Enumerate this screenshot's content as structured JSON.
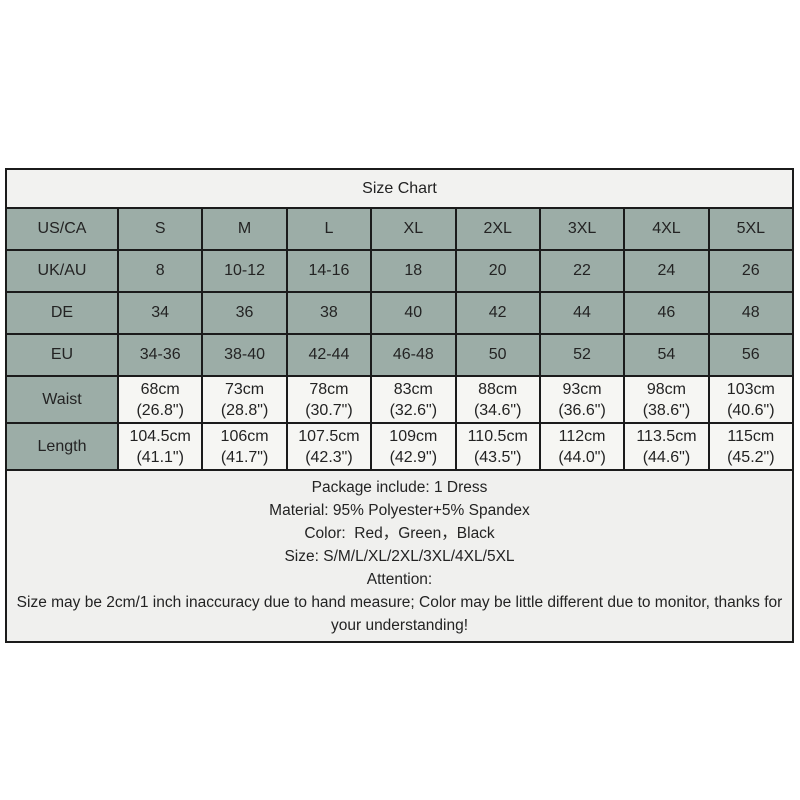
{
  "title": "Size Chart",
  "colors": {
    "cell_green": "#9cada7",
    "cell_light": "#f6f6f3",
    "panel_bg": "#f0f0ee",
    "border": "#1b1b1b",
    "text": "#232323"
  },
  "table": {
    "rows": [
      {
        "label": "US/CA",
        "values": [
          "S",
          "M",
          "L",
          "XL",
          "2XL",
          "3XL",
          "4XL",
          "5XL"
        ]
      },
      {
        "label": "UK/AU",
        "values": [
          "8",
          "10-12",
          "14-16",
          "18",
          "20",
          "22",
          "24",
          "26"
        ]
      },
      {
        "label": "DE",
        "values": [
          "34",
          "36",
          "38",
          "40",
          "42",
          "44",
          "46",
          "48"
        ]
      },
      {
        "label": "EU",
        "values": [
          "34-36",
          "38-40",
          "42-44",
          "46-48",
          "50",
          "52",
          "54",
          "56"
        ]
      },
      {
        "label": "Waist",
        "values": [
          "68cm\n(26.8\")",
          "73cm\n(28.8\")",
          "78cm\n(30.7\")",
          "83cm\n(32.6\")",
          "88cm\n(34.6\")",
          "93cm\n(36.6\")",
          "98cm\n(38.6\")",
          "103cm\n(40.6\")"
        ]
      },
      {
        "label": "Length",
        "values": [
          "104.5cm\n(41.1\")",
          "106cm\n(41.7\")",
          "107.5cm\n(42.3\")",
          "109cm\n(42.9\")",
          "110.5cm\n(43.5\")",
          "112cm\n(44.0\")",
          "113.5cm\n(44.6\")",
          "115cm\n(45.2\")"
        ]
      }
    ]
  },
  "notes": [
    "Package include: 1 Dress",
    "Material: 95% Polyester+5% Spandex",
    "Color:  Red，Green，Black",
    "Size: S/M/L/XL/2XL/3XL/4XL/5XL",
    "Attention:",
    "Size may be 2cm/1 inch inaccuracy due to hand measure; Color may be little different due to monitor, thanks for your understanding!"
  ],
  "chart_data": {
    "type": "table",
    "title": "Size Chart",
    "columns": [
      "",
      "S",
      "M",
      "L",
      "XL",
      "2XL",
      "3XL",
      "4XL",
      "5XL"
    ],
    "rows": [
      [
        "US/CA",
        "S",
        "M",
        "L",
        "XL",
        "2XL",
        "3XL",
        "4XL",
        "5XL"
      ],
      [
        "UK/AU",
        "8",
        "10-12",
        "14-16",
        "18",
        "20",
        "22",
        "24",
        "26"
      ],
      [
        "DE",
        "34",
        "36",
        "38",
        "40",
        "42",
        "44",
        "46",
        "48"
      ],
      [
        "EU",
        "34-36",
        "38-40",
        "42-44",
        "46-48",
        "50",
        "52",
        "54",
        "56"
      ],
      [
        "Waist",
        "68cm (26.8\")",
        "73cm (28.8\")",
        "78cm (30.7\")",
        "83cm (32.6\")",
        "88cm (34.6\")",
        "93cm (36.6\")",
        "98cm (38.6\")",
        "103cm (40.6\")"
      ],
      [
        "Length",
        "104.5cm (41.1\")",
        "106cm (41.7\")",
        "107.5cm (42.3\")",
        "109cm (42.9\")",
        "110.5cm (43.5\")",
        "112cm (44.0\")",
        "113.5cm (44.6\")",
        "115cm (45.2\")"
      ]
    ],
    "waist_cm": [
      68,
      73,
      78,
      83,
      88,
      93,
      98,
      103
    ],
    "waist_inch": [
      26.8,
      28.8,
      30.7,
      32.6,
      34.6,
      36.6,
      38.6,
      40.6
    ],
    "length_cm": [
      104.5,
      106,
      107.5,
      109,
      110.5,
      112,
      113.5,
      115
    ],
    "length_inch": [
      41.1,
      41.7,
      42.3,
      42.9,
      43.5,
      44.0,
      44.6,
      45.2
    ]
  }
}
